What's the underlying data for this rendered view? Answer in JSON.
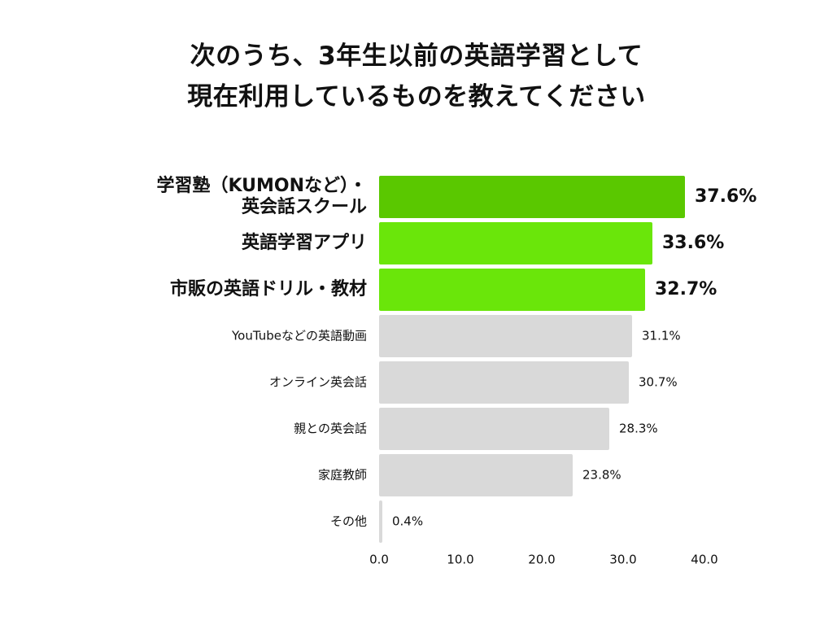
{
  "chart_data": {
    "type": "bar",
    "orientation": "horizontal",
    "title_lines": [
      "次のうち、3年生以前の英語学習として",
      "現在利用しているものを教えてください"
    ],
    "categories": [
      "学習塾（KUMONなど）・英会話スクール",
      "英語学習アプリ",
      "市販の英語ドリル・教材",
      "YouTubeなどの英語動画",
      "オンライン英会話",
      "親との英会話",
      "家庭教師",
      "その他"
    ],
    "category_label_lines": [
      [
        "学習塾（KUMONなど）・",
        "英会話スクール"
      ],
      [
        "英語学習アプリ"
      ],
      [
        "市販の英語ドリル・教材"
      ],
      [
        "YouTubeなどの英語動画"
      ],
      [
        "オンライン英会話"
      ],
      [
        "親との英会話"
      ],
      [
        "家庭教師"
      ],
      [
        "その他"
      ]
    ],
    "values": [
      37.6,
      33.6,
      32.7,
      31.1,
      30.7,
      28.3,
      23.8,
      0.4
    ],
    "value_labels": [
      "37.6%",
      "33.6%",
      "32.7%",
      "31.1%",
      "30.7%",
      "28.3%",
      "23.8%",
      "0.4%"
    ],
    "highlighted": [
      true,
      true,
      true,
      false,
      false,
      false,
      false,
      false
    ],
    "xlim": [
      0,
      40
    ],
    "x_ticks": [
      0,
      10,
      20,
      30,
      40
    ],
    "x_tick_labels": [
      "0.0",
      "10.0",
      "20.0",
      "30.0",
      "40.0"
    ],
    "grid": false,
    "legend": "none",
    "colors": {
      "top_bar": "#5ac800",
      "highlight_bar": "#6ae60a",
      "other_bar": "#d9d9d9",
      "text": "#111111"
    }
  }
}
